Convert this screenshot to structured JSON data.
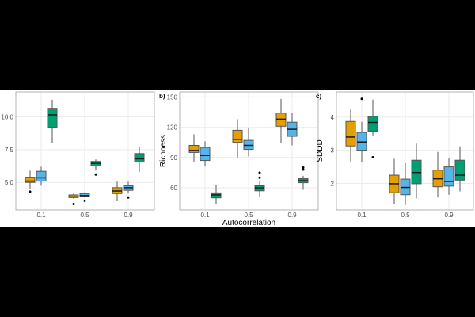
{
  "chart_data": [
    {
      "type": "box",
      "panel_label": "",
      "xlabel": "",
      "ylabel": "",
      "categories": [
        "0.1",
        "0.5",
        "0.9"
      ],
      "ylim": [
        2.9,
        11.9
      ],
      "yticks": [
        "5.0",
        "7.5",
        "10.0"
      ],
      "ytick_values": [
        5.0,
        7.5,
        10.0
      ],
      "grid": true,
      "series": [
        {
          "color": "#E69F00",
          "boxes": [
            {
              "low": 4.5,
              "q1": 5.0,
              "med": 5.1,
              "q3": 5.4,
              "high": 5.9,
              "outliers": [
                4.3
              ]
            },
            {
              "low": 3.75,
              "q1": 3.85,
              "med": 3.9,
              "q3": 4.05,
              "high": 4.15,
              "outliers": [
                3.35
              ]
            },
            {
              "low": 3.6,
              "q1": 4.15,
              "med": 4.35,
              "q3": 4.6,
              "high": 5.05,
              "outliers": []
            }
          ]
        },
        {
          "color": "#56B4E9",
          "boxes": [
            {
              "low": 4.75,
              "q1": 5.1,
              "med": 5.35,
              "q3": 5.85,
              "high": 6.2,
              "outliers": []
            },
            {
              "low": 3.85,
              "q1": 3.95,
              "med": 4.0,
              "q3": 4.15,
              "high": 4.25,
              "outliers": [
                3.6
              ]
            },
            {
              "low": 4.15,
              "q1": 4.4,
              "med": 4.6,
              "q3": 4.75,
              "high": 5.05,
              "outliers": [
                3.85
              ]
            }
          ]
        },
        {
          "color": "#009E73",
          "boxes": [
            {
              "low": 8.0,
              "q1": 9.2,
              "med": 10.15,
              "q3": 10.65,
              "high": 11.3,
              "outliers": []
            },
            {
              "low": 5.9,
              "q1": 6.25,
              "med": 6.45,
              "q3": 6.6,
              "high": 6.75,
              "outliers": [
                5.6
              ]
            },
            {
              "low": 5.8,
              "q1": 6.55,
              "med": 6.8,
              "q3": 7.2,
              "high": 7.7,
              "outliers": []
            }
          ]
        }
      ]
    },
    {
      "type": "box",
      "panel_label": "b)",
      "xlabel": "Autocorrelation",
      "ylabel": "Richness",
      "categories": [
        "0.1",
        "0.5",
        "0.9"
      ],
      "ylim": [
        38,
        155
      ],
      "yticks": [
        "60",
        "90",
        "120",
        "150"
      ],
      "ytick_values": [
        60,
        90,
        120,
        150
      ],
      "grid": true,
      "series": [
        {
          "color": "#E69F00",
          "boxes": [
            {
              "low": 86,
              "q1": 95,
              "med": 97,
              "q3": 102,
              "high": 113,
              "outliers": []
            },
            {
              "low": 90,
              "q1": 105,
              "med": 108,
              "q3": 117,
              "high": 128,
              "outliers": []
            },
            {
              "low": 104,
              "q1": 121,
              "med": 128,
              "q3": 134,
              "high": 148,
              "outliers": []
            }
          ]
        },
        {
          "color": "#56B4E9",
          "boxes": [
            {
              "low": 81,
              "q1": 87,
              "med": 92,
              "q3": 100,
              "high": 106,
              "outliers": []
            },
            {
              "low": 91,
              "q1": 98,
              "med": 102,
              "q3": 107,
              "high": 119,
              "outliers": []
            },
            {
              "low": 102,
              "q1": 111,
              "med": 118,
              "q3": 125,
              "high": 134,
              "outliers": []
            }
          ]
        },
        {
          "color": "#009E73",
          "boxes": [
            {
              "low": 44,
              "q1": 50,
              "med": 53,
              "q3": 55,
              "high": 63,
              "outliers": []
            },
            {
              "low": 51,
              "q1": 57,
              "med": 60,
              "q3": 62,
              "high": 67,
              "outliers": [
                70,
                75
              ]
            },
            {
              "low": 58,
              "q1": 65,
              "med": 67,
              "q3": 69,
              "high": 72,
              "outliers": [
                78,
                80
              ]
            }
          ]
        }
      ]
    },
    {
      "type": "box",
      "panel_label": "c)",
      "xlabel": "",
      "ylabel": "SDDD",
      "categories": [
        "0.1",
        "0.5",
        "0.9"
      ],
      "ylim": [
        1.2,
        4.76
      ],
      "yticks": [
        "2",
        "3",
        "4"
      ],
      "ytick_values": [
        2,
        3,
        4
      ],
      "grid": true,
      "series": [
        {
          "color": "#E69F00",
          "boxes": [
            {
              "low": 2.66,
              "q1": 3.13,
              "med": 3.4,
              "q3": 3.87,
              "high": 4.25,
              "outliers": []
            },
            {
              "low": 1.37,
              "q1": 1.72,
              "med": 1.99,
              "q3": 2.25,
              "high": 2.74,
              "outliers": []
            },
            {
              "low": 1.58,
              "q1": 1.9,
              "med": 2.14,
              "q3": 2.4,
              "high": 2.95,
              "outliers": []
            }
          ]
        },
        {
          "color": "#56B4E9",
          "boxes": [
            {
              "low": 2.63,
              "q1": 3.0,
              "med": 3.25,
              "q3": 3.54,
              "high": 3.86,
              "outliers": [
                4.55
              ]
            },
            {
              "low": 1.35,
              "q1": 1.66,
              "med": 1.88,
              "q3": 2.13,
              "high": 2.61,
              "outliers": []
            },
            {
              "low": 1.66,
              "q1": 1.92,
              "med": 2.06,
              "q3": 2.5,
              "high": 2.77,
              "outliers": []
            }
          ]
        },
        {
          "color": "#009E73",
          "boxes": [
            {
              "low": 3.45,
              "q1": 3.57,
              "med": 3.84,
              "q3": 4.02,
              "high": 4.53,
              "outliers": [
                2.79
              ]
            },
            {
              "low": 1.55,
              "q1": 1.99,
              "med": 2.33,
              "q3": 2.7,
              "high": 3.2,
              "outliers": []
            },
            {
              "low": 1.76,
              "q1": 2.1,
              "med": 2.25,
              "q3": 2.7,
              "high": 3.12,
              "outliers": []
            }
          ]
        }
      ]
    }
  ]
}
